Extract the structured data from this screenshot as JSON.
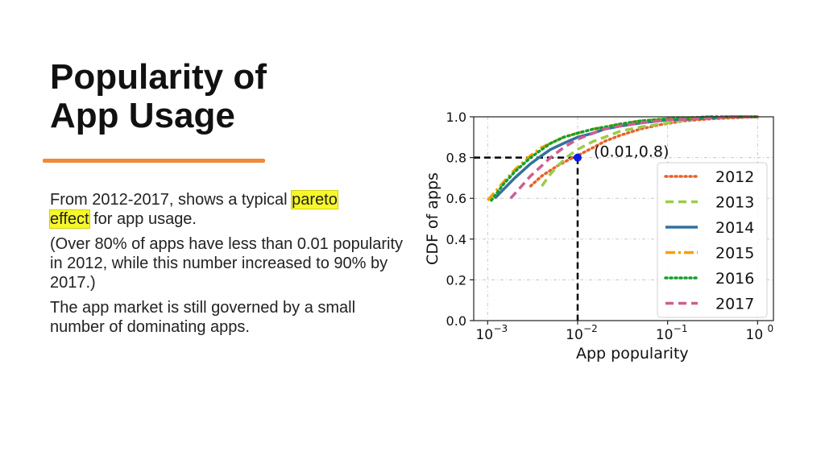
{
  "slide": {
    "title_line1": "Popularity of",
    "title_line2": "App Usage",
    "p1_a": "From 2012-2017, shows a typical ",
    "p1_hl1": "pareto",
    "p1_hl2": "effect",
    "p1_b": " for app usage.",
    "p2": "(Over 80% of apps have less than 0.01 popularity in 2012, while this number increased to 90% by 2017.)",
    "p3": "The app market is still governed by a small number of dominating apps.",
    "accent_color": "#ee8a3a",
    "highlight_color": "#f6f82a"
  },
  "chart_data": {
    "type": "line",
    "xlabel": "App popularity",
    "ylabel": "CDF of apps",
    "xscale": "log",
    "xlim": [
      0.0007,
      1.5
    ],
    "ylim": [
      0,
      1.0
    ],
    "xticks": [
      0.001,
      0.01,
      0.1,
      1
    ],
    "xtick_labels": [
      [
        "10",
        "−3"
      ],
      [
        "10",
        "−2"
      ],
      [
        "10",
        "−1"
      ],
      [
        "10",
        "0"
      ]
    ],
    "yticks": [
      0.0,
      0.2,
      0.4,
      0.6,
      0.8,
      1.0
    ],
    "ytick_labels": [
      "0.0",
      "0.2",
      "0.4",
      "0.6",
      "0.8",
      "1.0"
    ],
    "grid": true,
    "legend_position": "bottom-right",
    "annotation": {
      "text": "(0.01,0.8)",
      "x": 0.01,
      "y": 0.8
    },
    "series": [
      {
        "name": "2012",
        "color": "#e8622b",
        "dash": "dotted",
        "x": [
          0.003,
          0.004,
          0.006,
          0.008,
          0.01,
          0.015,
          0.02,
          0.03,
          0.05,
          0.08,
          0.15,
          0.3,
          1.0
        ],
        "y": [
          0.66,
          0.71,
          0.76,
          0.79,
          0.81,
          0.85,
          0.88,
          0.91,
          0.94,
          0.96,
          0.98,
          0.99,
          1.0
        ]
      },
      {
        "name": "2013",
        "color": "#9ccc45",
        "dash": "dashed",
        "x": [
          0.004,
          0.005,
          0.006,
          0.008,
          0.01,
          0.015,
          0.02,
          0.03,
          0.05,
          0.1,
          0.2,
          0.5,
          1.0
        ],
        "y": [
          0.66,
          0.72,
          0.76,
          0.81,
          0.84,
          0.88,
          0.9,
          0.93,
          0.95,
          0.97,
          0.99,
          1.0,
          1.0
        ]
      },
      {
        "name": "2014",
        "color": "#35709e",
        "dash": "solid",
        "x": [
          0.0012,
          0.002,
          0.003,
          0.004,
          0.005,
          0.007,
          0.01,
          0.015,
          0.02,
          0.03,
          0.05,
          0.1,
          0.2,
          0.5,
          1.0
        ],
        "y": [
          0.6,
          0.7,
          0.77,
          0.81,
          0.84,
          0.87,
          0.9,
          0.92,
          0.94,
          0.955,
          0.97,
          0.985,
          0.99,
          1.0,
          1.0
        ]
      },
      {
        "name": "2015",
        "color": "#f2a100",
        "dash": "dashdot",
        "x": [
          0.001,
          0.0015,
          0.002,
          0.003,
          0.004,
          0.005,
          0.007,
          0.01,
          0.015,
          0.02,
          0.03,
          0.05,
          0.1,
          0.3,
          1.0
        ],
        "y": [
          0.59,
          0.68,
          0.74,
          0.81,
          0.85,
          0.87,
          0.9,
          0.92,
          0.94,
          0.95,
          0.965,
          0.98,
          0.99,
          1.0,
          1.0
        ]
      },
      {
        "name": "2016",
        "color": "#12a02a",
        "dash": "dotted",
        "x": [
          0.0011,
          0.0015,
          0.002,
          0.003,
          0.004,
          0.005,
          0.007,
          0.01,
          0.015,
          0.02,
          0.03,
          0.05,
          0.1,
          0.3,
          1.0
        ],
        "y": [
          0.59,
          0.67,
          0.73,
          0.8,
          0.84,
          0.87,
          0.9,
          0.92,
          0.94,
          0.95,
          0.965,
          0.98,
          0.99,
          1.0,
          1.0
        ]
      },
      {
        "name": "2017",
        "color": "#cc5f92",
        "dash": "dashed",
        "x": [
          0.0018,
          0.0025,
          0.003,
          0.004,
          0.005,
          0.007,
          0.01,
          0.015,
          0.02,
          0.03,
          0.05,
          0.1,
          0.2,
          0.5,
          1.0
        ],
        "y": [
          0.6,
          0.67,
          0.71,
          0.76,
          0.8,
          0.85,
          0.89,
          0.92,
          0.94,
          0.955,
          0.97,
          0.985,
          0.99,
          1.0,
          1.0
        ]
      }
    ]
  }
}
